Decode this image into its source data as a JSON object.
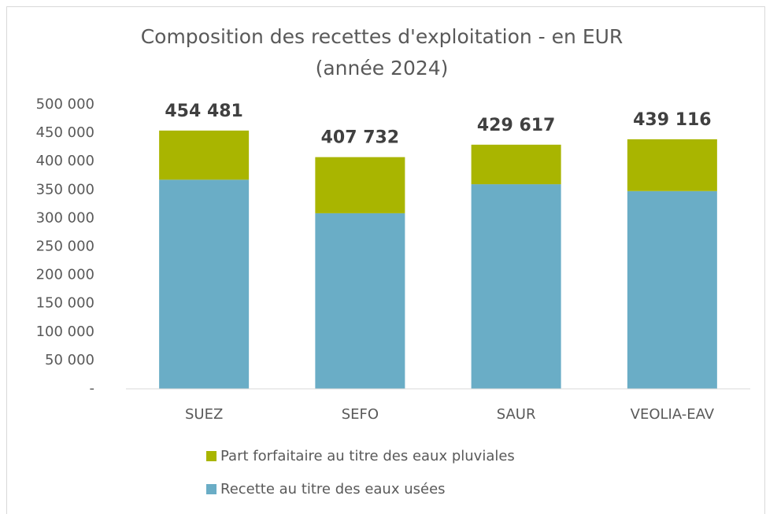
{
  "chart_data": {
    "type": "stacked_bar",
    "title": "Composition des recettes d'exploitation - en EUR",
    "subtitle": "(année 2024)",
    "categories": [
      "SUEZ",
      "SEFO",
      "SAUR",
      "VEOLIA-EAV"
    ],
    "series": [
      {
        "name": "Recette au titre des eaux usées",
        "color": "#6aadc6",
        "values": [
          368000,
          309000,
          360000,
          348000
        ]
      },
      {
        "name": "Part forfaitaire au titre des eaux pluviales",
        "color": "#a9b500",
        "values": [
          86481,
          98732,
          69617,
          91116
        ]
      }
    ],
    "totals": [
      454481,
      407732,
      429617,
      439116
    ],
    "total_labels": [
      "454 481",
      "407 732",
      "429 617",
      "439 116"
    ],
    "ylim": [
      0,
      500000
    ],
    "yticks": [
      {
        "value": 0,
        "label": "-"
      },
      {
        "value": 50000,
        "label": "50 000"
      },
      {
        "value": 100000,
        "label": "100 000"
      },
      {
        "value": 150000,
        "label": "150 000"
      },
      {
        "value": 200000,
        "label": "200 000"
      },
      {
        "value": 250000,
        "label": "250 000"
      },
      {
        "value": 300000,
        "label": "300 000"
      },
      {
        "value": 350000,
        "label": "350 000"
      },
      {
        "value": 400000,
        "label": "400 000"
      },
      {
        "value": 450000,
        "label": "450 000"
      },
      {
        "value": 500000,
        "label": "500 000"
      }
    ],
    "grid": false,
    "legend": "bottom"
  }
}
